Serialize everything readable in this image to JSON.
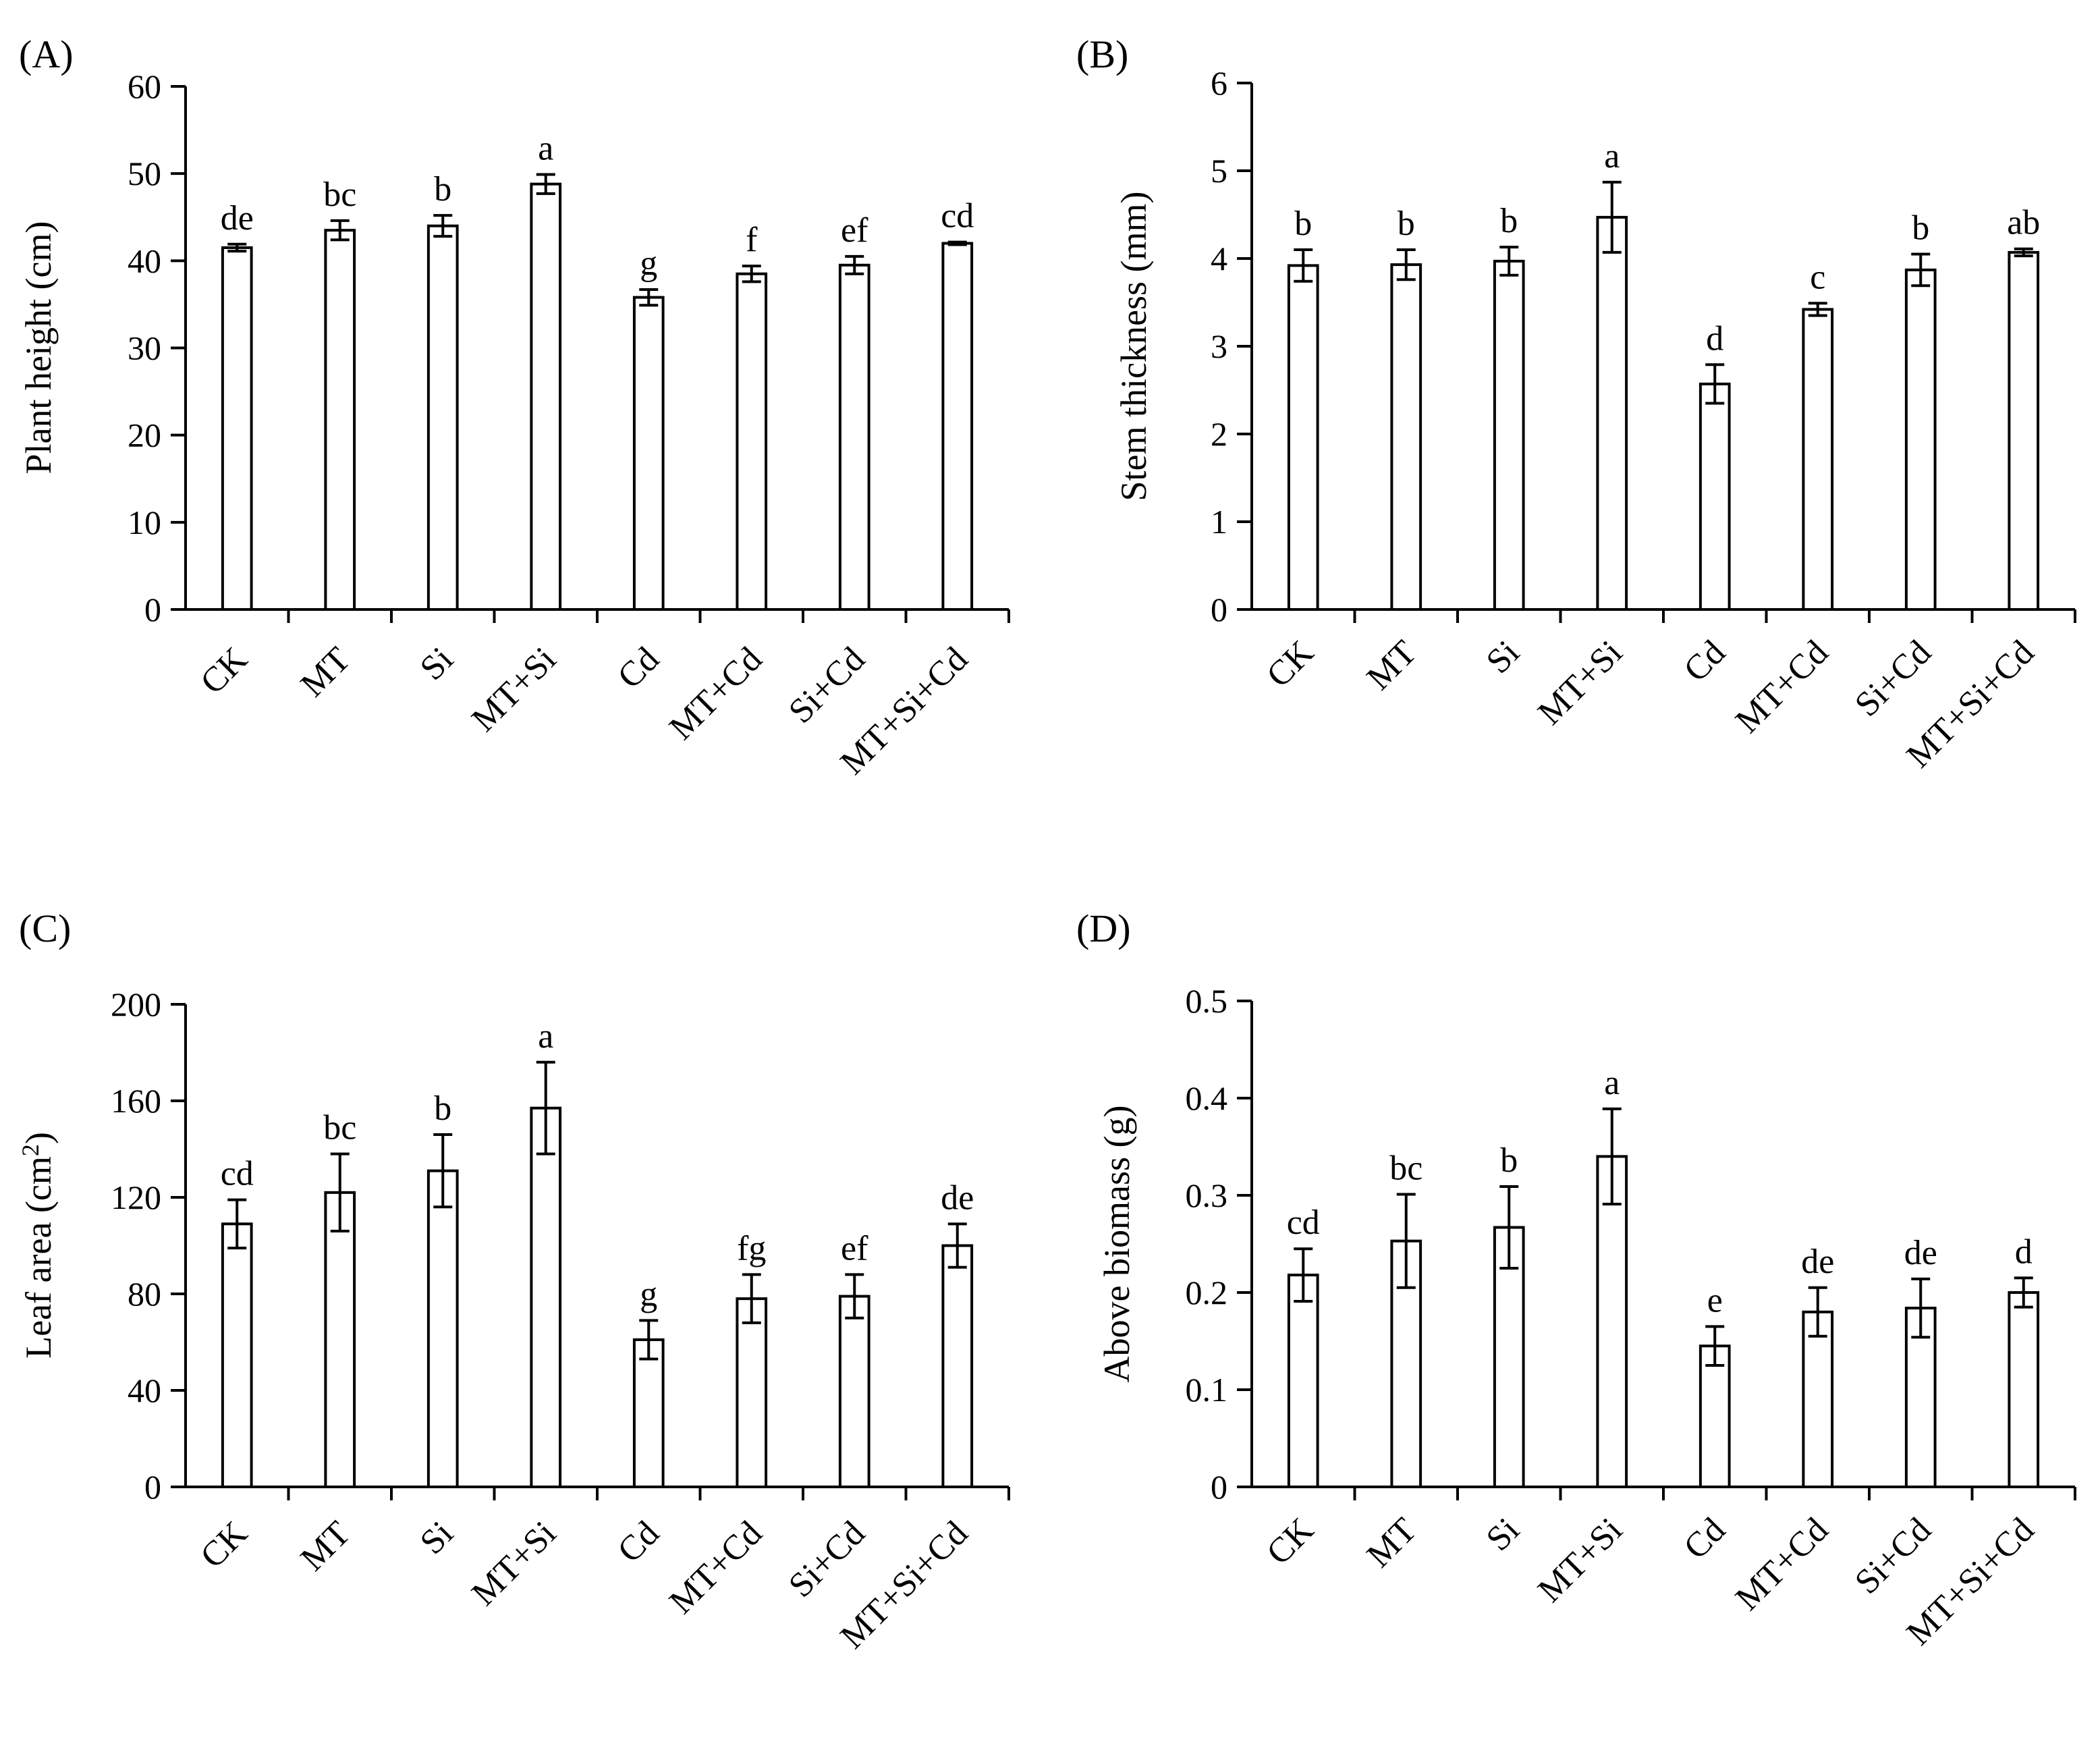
{
  "chart_data": [
    {
      "panel": "(A)",
      "type": "bar",
      "ylabel": "Plant height (cm)",
      "ylabel_sup": "",
      "ylabel_tail": "",
      "ylim": [
        0,
        60
      ],
      "yticks": [
        0,
        10,
        20,
        30,
        40,
        50,
        60
      ],
      "ytick_labels": [
        "0",
        "10",
        "20",
        "30",
        "40",
        "50",
        "60"
      ],
      "categories": [
        "CK",
        "MT",
        "Si",
        "MT+Si",
        "Cd",
        "MT+Cd",
        "Si+Cd",
        "MT+Si+Cd"
      ],
      "values": [
        41.5,
        43.5,
        44.0,
        48.8,
        35.8,
        38.5,
        39.5,
        42.0
      ],
      "errors": [
        0.4,
        1.1,
        1.2,
        1.1,
        0.9,
        0.9,
        1.0,
        0.15
      ],
      "letters": [
        "de",
        "bc",
        "b",
        "a",
        "g",
        "f",
        "ef",
        "cd"
      ]
    },
    {
      "panel": "(B)",
      "type": "bar",
      "ylabel": "Stem thickness (mm)",
      "ylabel_sup": "",
      "ylabel_tail": "",
      "ylim": [
        0,
        6
      ],
      "yticks": [
        0,
        1,
        2,
        3,
        4,
        5,
        6
      ],
      "ytick_labels": [
        "0",
        "1",
        "2",
        "3",
        "4",
        "5",
        "6"
      ],
      "categories": [
        "CK",
        "MT",
        "Si",
        "MT+Si",
        "Cd",
        "MT+Cd",
        "Si+Cd",
        "MT+Si+Cd"
      ],
      "values": [
        3.92,
        3.93,
        3.97,
        4.47,
        2.57,
        3.42,
        3.87,
        4.07
      ],
      "errors": [
        0.18,
        0.17,
        0.16,
        0.4,
        0.22,
        0.07,
        0.18,
        0.04
      ],
      "letters": [
        "b",
        "b",
        "b",
        "a",
        "d",
        "c",
        "b",
        "ab"
      ]
    },
    {
      "panel": "(C)",
      "type": "bar",
      "ylabel": "Leaf area (cm",
      "ylabel_sup": "2",
      "ylabel_tail": ")",
      "ylim": [
        0,
        200
      ],
      "yticks": [
        0,
        40,
        80,
        120,
        160,
        200
      ],
      "ytick_labels": [
        "0",
        "40",
        "80",
        "120",
        "160",
        "200"
      ],
      "categories": [
        "CK",
        "MT",
        "Si",
        "MT+Si",
        "Cd",
        "MT+Cd",
        "Si+Cd",
        "MT+Si+Cd"
      ],
      "values": [
        109,
        122,
        131,
        157,
        61,
        78,
        79,
        100
      ],
      "errors": [
        10,
        16,
        15,
        19,
        8,
        10,
        9,
        9
      ],
      "letters": [
        "cd",
        "bc",
        "b",
        "a",
        "g",
        "fg",
        "ef",
        "de"
      ]
    },
    {
      "panel": "(D)",
      "type": "bar",
      "ylabel": "Above  biomass (g)",
      "ylabel_sup": "",
      "ylabel_tail": "",
      "ylim": [
        0,
        0.5
      ],
      "yticks": [
        0,
        0.1,
        0.2,
        0.3,
        0.4,
        0.5
      ],
      "ytick_labels": [
        "0",
        "0.1",
        "0.2",
        "0.3",
        "0.4",
        "0.5"
      ],
      "categories": [
        "CK",
        "MT",
        "Si",
        "MT+Si",
        "Cd",
        "MT+Cd",
        "Si+Cd",
        "MT+Si+Cd"
      ],
      "values": [
        0.218,
        0.253,
        0.267,
        0.34,
        0.145,
        0.18,
        0.184,
        0.2
      ],
      "errors": [
        0.027,
        0.048,
        0.042,
        0.049,
        0.02,
        0.025,
        0.03,
        0.015
      ],
      "letters": [
        "cd",
        "bc",
        "b",
        "a",
        "e",
        "de",
        "de",
        "d"
      ]
    }
  ]
}
